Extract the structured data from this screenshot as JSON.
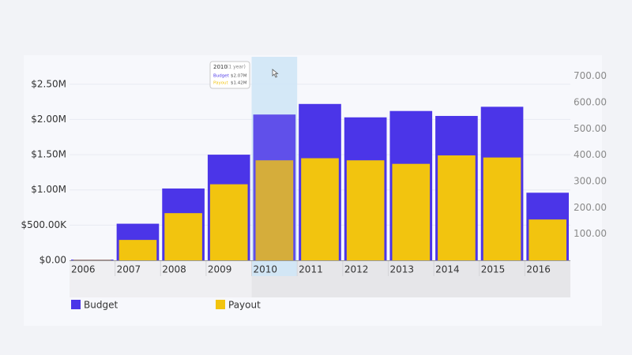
{
  "chart_data": {
    "type": "bar",
    "categories": [
      "2006",
      "2007",
      "2008",
      "2009",
      "2010",
      "2011",
      "2012",
      "2013",
      "2014",
      "2015",
      "2016"
    ],
    "series": [
      {
        "name": "Budget",
        "color": "#4b35e8",
        "values": [
          10000,
          520000,
          1020000,
          1500000,
          2070000,
          2220000,
          2030000,
          2120000,
          2050000,
          2180000,
          960000
        ]
      },
      {
        "name": "Payout",
        "color": "#f2c40f",
        "values": [
          5000,
          290000,
          670000,
          1080000,
          1420000,
          1450000,
          1420000,
          1370000,
          1490000,
          1460000,
          580000
        ]
      }
    ],
    "ylim": [
      0,
      2800000
    ],
    "yticks": [
      {
        "value": 0,
        "label": "$0.00"
      },
      {
        "value": 500000,
        "label": "$500.00K"
      },
      {
        "value": 1000000,
        "label": "$1.00M"
      },
      {
        "value": 1500000,
        "label": "$1.50M"
      },
      {
        "value": 2000000,
        "label": "$2.00M"
      },
      {
        "value": 2500000,
        "label": "$2.50M"
      }
    ],
    "y2lim": [
      0,
      750
    ],
    "y2ticks": [
      {
        "value": 100,
        "label": "100.00"
      },
      {
        "value": 200,
        "label": "200.00"
      },
      {
        "value": 300,
        "label": "300.00"
      },
      {
        "value": 400,
        "label": "400.00"
      },
      {
        "value": 500,
        "label": "500.00"
      },
      {
        "value": 600,
        "label": "600.00"
      },
      {
        "value": 700,
        "label": "700.00"
      }
    ],
    "grid": true,
    "legend": "bottom-left",
    "highlight_index": 4,
    "tooltip": {
      "note": "(1 year)",
      "values": [
        "$2.07M",
        "$1.42M"
      ]
    }
  }
}
